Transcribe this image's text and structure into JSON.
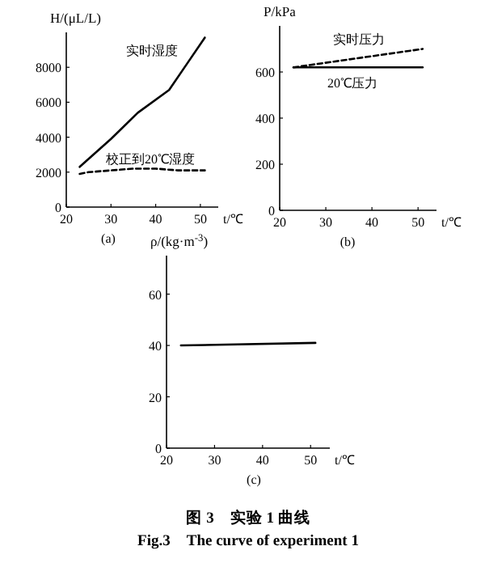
{
  "chart_data": [
    {
      "type": "line",
      "xlabel": "t/℃",
      "ylabel": "H/(μL/L)",
      "xlim": [
        20,
        54
      ],
      "ylim": [
        0,
        10000
      ],
      "xticks": [
        20,
        30,
        40,
        50
      ],
      "yticks": [
        0,
        2000,
        4000,
        6000,
        8000
      ],
      "series": [
        {
          "name": "实时湿度",
          "color": "#000000",
          "line_style": "solid",
          "x": [
            23,
            30,
            36,
            43,
            47,
            51
          ],
          "values": [
            2300,
            3900,
            5400,
            6700,
            8200,
            9700
          ]
        },
        {
          "name": "校正到20℃湿度",
          "color": "#000000",
          "line_style": "dashed",
          "x": [
            23,
            25,
            30,
            35,
            40,
            45,
            51
          ],
          "values": [
            1900,
            2000,
            2100,
            2200,
            2200,
            2100,
            2100
          ]
        }
      ],
      "annotations": [
        "(a)"
      ]
    },
    {
      "type": "line",
      "xlabel": "t/℃",
      "ylabel": "P/kPa",
      "xlim": [
        20,
        54
      ],
      "ylim": [
        0,
        800
      ],
      "xticks": [
        20,
        30,
        40,
        50
      ],
      "yticks": [
        0,
        200,
        400,
        600
      ],
      "series": [
        {
          "name": "实时压力",
          "color": "#000000",
          "line_style": "dashed",
          "x": [
            23,
            51
          ],
          "values": [
            620,
            700
          ]
        },
        {
          "name": "20℃压力",
          "color": "#000000",
          "line_style": "solid",
          "x": [
            23,
            51
          ],
          "values": [
            620,
            620
          ]
        }
      ],
      "annotations": [
        "(b)"
      ]
    },
    {
      "type": "line",
      "xlabel": "t/℃",
      "ylabel": "ρ/(kg·m$^{-3}$)",
      "xlim": [
        20,
        54
      ],
      "ylim": [
        0,
        75
      ],
      "xticks": [
        20,
        30,
        40,
        50
      ],
      "yticks": [
        0,
        20,
        40,
        60
      ],
      "series": [
        {
          "color": "#000000",
          "line_style": "solid",
          "x": [
            23,
            51
          ],
          "values": [
            40,
            41
          ]
        }
      ],
      "annotations": [
        "(c)",
        "图 3　实验 1 曲线",
        "Fig.3　The curve of experiment 1"
      ]
    }
  ]
}
